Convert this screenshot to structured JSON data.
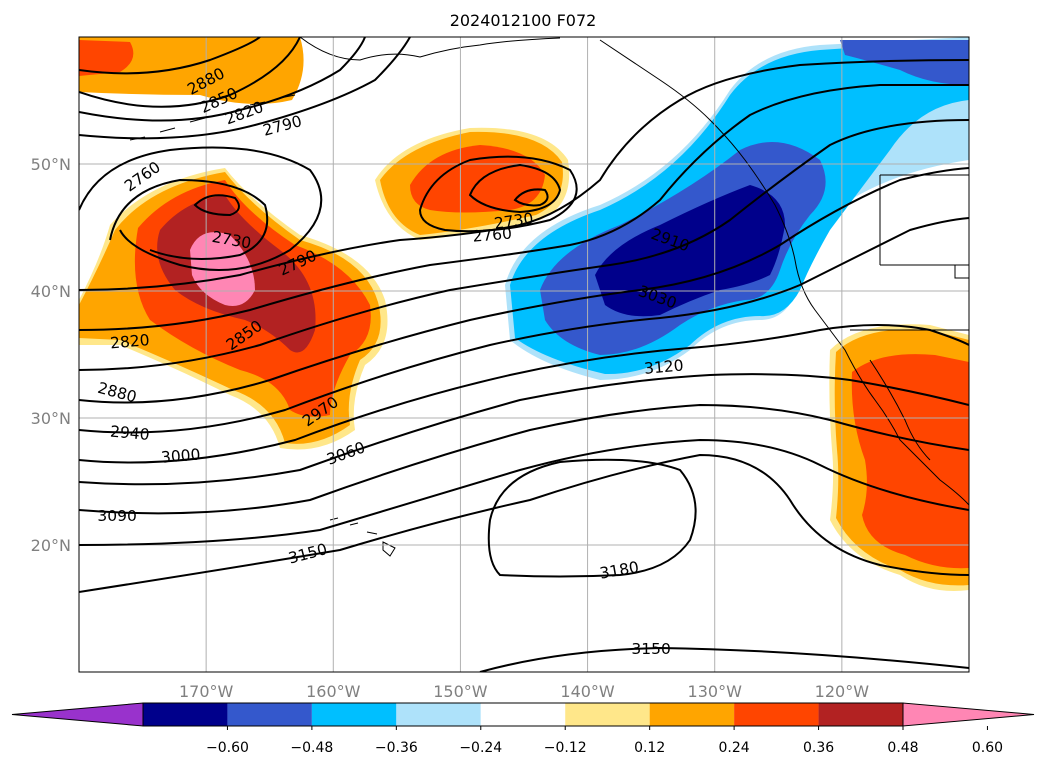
{
  "title": "2024012100 F072",
  "map": {
    "lon_range": [
      -180,
      -110
    ],
    "lat_range": [
      10,
      60
    ],
    "grid": true,
    "lon_ticks": [
      {
        "value": -170,
        "label": "170°W"
      },
      {
        "value": -160,
        "label": "160°W"
      },
      {
        "value": -150,
        "label": "150°W"
      },
      {
        "value": -140,
        "label": "140°W"
      },
      {
        "value": -130,
        "label": "130°W"
      },
      {
        "value": -120,
        "label": "120°W"
      }
    ],
    "lat_ticks": [
      {
        "value": 50,
        "label": "50°N"
      },
      {
        "value": 40,
        "label": "40°N"
      },
      {
        "value": 30,
        "label": "30°N"
      },
      {
        "value": 20,
        "label": "20°N"
      }
    ],
    "contour_labels": [
      {
        "text": "2880",
        "lon": -170,
        "lat": 56.5,
        "rot": -28
      },
      {
        "text": "2850",
        "lon": -169,
        "lat": 55.0,
        "rot": -25
      },
      {
        "text": "2820",
        "lon": -167,
        "lat": 54.0,
        "rot": -20
      },
      {
        "text": "2790",
        "lon": -164,
        "lat": 53.0,
        "rot": -15
      },
      {
        "text": "2760",
        "lon": -175,
        "lat": 49.0,
        "rot": -35
      },
      {
        "text": "2730",
        "lon": -168,
        "lat": 44.0,
        "rot": 10
      },
      {
        "text": "2790",
        "lon": -162.8,
        "lat": 42.2,
        "rot": -25
      },
      {
        "text": "2820",
        "lon": -176,
        "lat": 36.0,
        "rot": -5
      },
      {
        "text": "2850",
        "lon": -167,
        "lat": 36.5,
        "rot": -35
      },
      {
        "text": "2880",
        "lon": -177,
        "lat": 32.0,
        "rot": 15
      },
      {
        "text": "2940",
        "lon": -176,
        "lat": 28.8,
        "rot": 5
      },
      {
        "text": "2970",
        "lon": -161,
        "lat": 30.5,
        "rot": -35
      },
      {
        "text": "3000",
        "lon": -172,
        "lat": 27.0,
        "rot": -5
      },
      {
        "text": "3060",
        "lon": -159,
        "lat": 27.2,
        "rot": -20
      },
      {
        "text": "3090",
        "lon": -177,
        "lat": 22.3,
        "rot": 0
      },
      {
        "text": "3150",
        "lon": -162,
        "lat": 19.3,
        "rot": -15
      },
      {
        "text": "3180",
        "lon": -137.5,
        "lat": 18.0,
        "rot": -10
      },
      {
        "text": "3150",
        "lon": -135,
        "lat": 11.8,
        "rot": 0
      },
      {
        "text": "3120",
        "lon": -134,
        "lat": 34.0,
        "rot": -5
      },
      {
        "text": "3030",
        "lon": -134.5,
        "lat": 39.5,
        "rot": 20
      },
      {
        "text": "2910",
        "lon": -133.5,
        "lat": 44.0,
        "rot": 20
      },
      {
        "text": "2730",
        "lon": -145.8,
        "lat": 45.5,
        "rot": -8
      },
      {
        "text": "2760",
        "lon": -147.5,
        "lat": 44.4,
        "rot": -5
      }
    ]
  },
  "colorbar": {
    "ticks": [
      "−0.60",
      "−0.48",
      "−0.36",
      "−0.24",
      "−0.12",
      "0.12",
      "0.24",
      "0.36",
      "0.48",
      "0.60"
    ],
    "colors": [
      "#9932cc",
      "#00008b",
      "#3458cc",
      "#00bfff",
      "#aee2fa",
      "#ffffff",
      "#ffe78a",
      "#ffa500",
      "#ff4500",
      "#b22222",
      "#ff86b4"
    ]
  }
}
